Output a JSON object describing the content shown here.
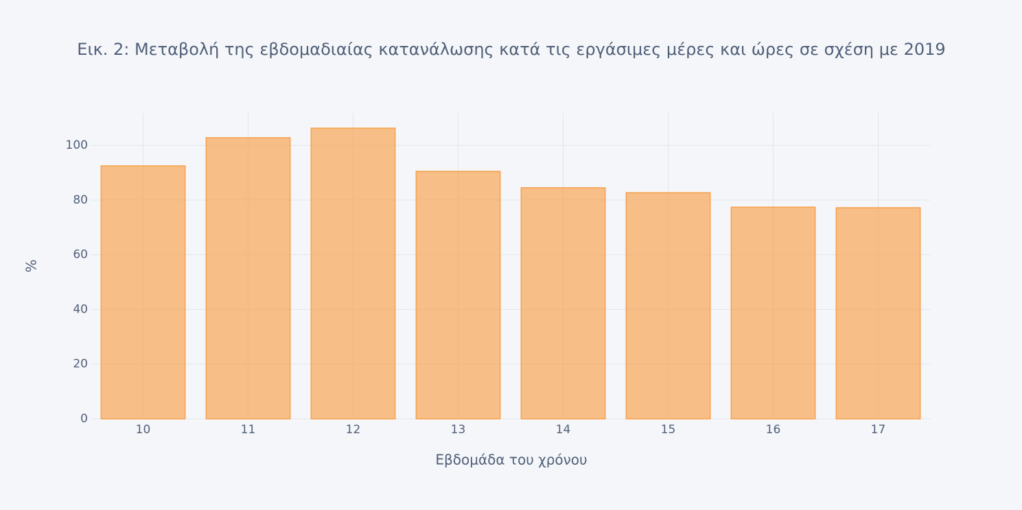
{
  "chart_data": {
    "type": "bar",
    "title": "Εικ. 2: Μεταβολή της εβδομαδιαίας κατανάλωσης κατά τις εργάσιμες μέρες και ώρες σε σχέση με 2019",
    "x_label": "Εβδομάδα του χρόνου",
    "y_label": "%",
    "x": [
      10,
      11,
      12,
      13,
      14,
      15,
      16,
      17
    ],
    "values": [
      92.5,
      102.8,
      106.3,
      90.5,
      84.5,
      82.7,
      77.4,
      77.2
    ],
    "color": "#f7a04a",
    "xlim": [
      9.5,
      17.5
    ],
    "xticks": [
      10,
      11,
      12,
      13,
      14,
      15,
      16,
      17
    ],
    "ylim": [
      0,
      111.8
    ],
    "yticks": [
      0,
      20,
      40,
      60,
      80,
      100
    ],
    "grid": true
  }
}
